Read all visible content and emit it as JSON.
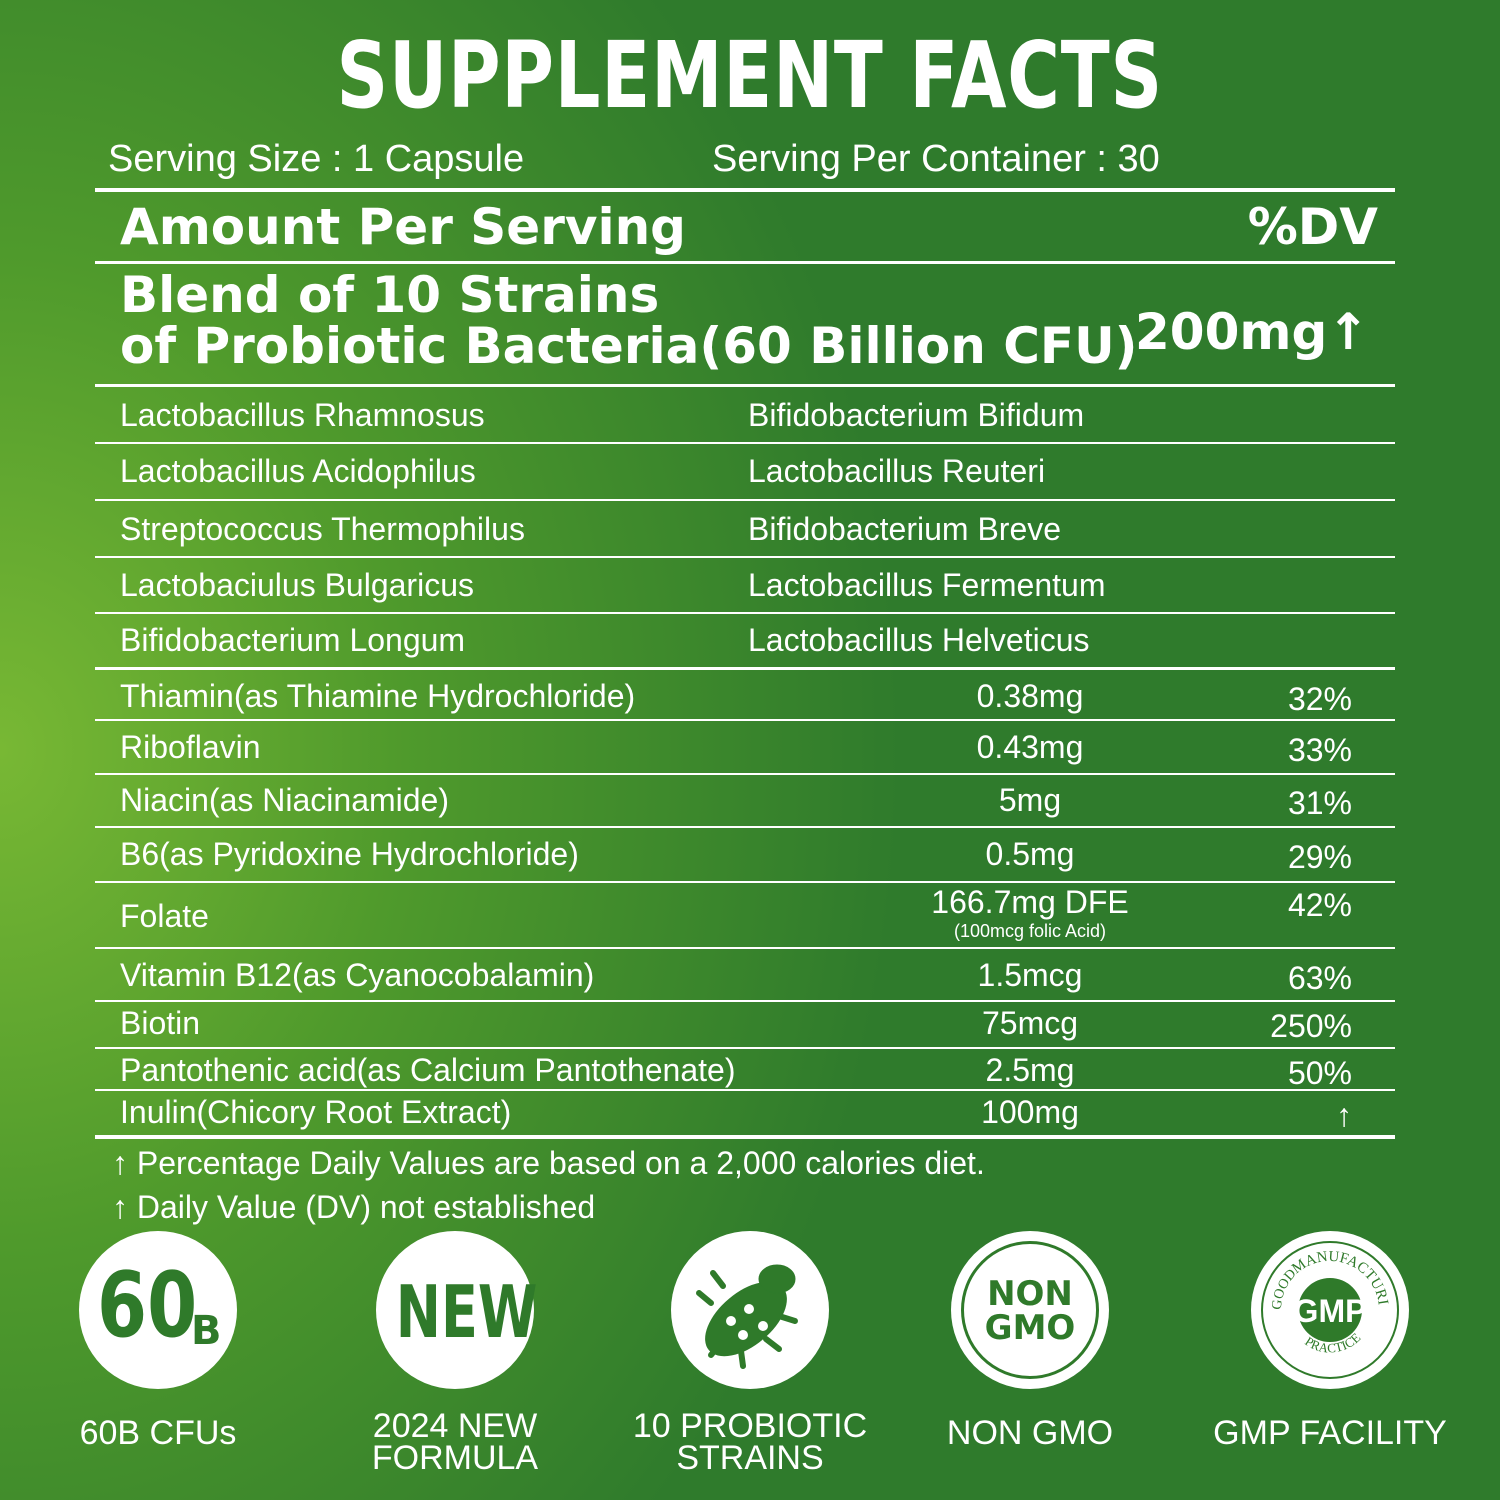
{
  "title": "SUPPLEMENT FACTS",
  "serving_size": "Serving Size : 1 Capsule",
  "servings_per_container": "Serving Per Container : 30",
  "header": {
    "amount": "Amount Per Serving",
    "dv": "%DV"
  },
  "blend": {
    "name_line1": "Blend of 10 Strains",
    "name_line2": "of Probiotic Bacteria(60 Billion CFU)",
    "amount": "200mg↑"
  },
  "strains": [
    [
      "Lactobacillus Rhamnosus",
      "Bifidobacterium Bifidum"
    ],
    [
      "Lactobacillus Acidophilus",
      "Lactobacillus Reuteri"
    ],
    [
      "Streptococcus Thermophilus",
      "Bifidobacterium Breve"
    ],
    [
      "Lactobaciulus Bulgaricus",
      "Lactobacillus Fermentum"
    ],
    [
      "Bifidobacterium Longum",
      "Lactobacillus Helveticus"
    ]
  ],
  "nutrients": [
    {
      "name": "Thiamin(as Thiamine Hydrochloride)",
      "amount": "0.38mg",
      "dv": "32%"
    },
    {
      "name": "Riboflavin",
      "amount": "0.43mg",
      "dv": "33%"
    },
    {
      "name": "Niacin(as Niacinamide)",
      "amount": "5mg",
      "dv": "31%"
    },
    {
      "name": "B6(as Pyridoxine Hydrochloride)",
      "amount": "0.5mg",
      "dv": "29%"
    },
    {
      "name": "Folate",
      "amount": "166.7mg DFE",
      "note": "(100mcg folic Acid)",
      "dv": "42%"
    },
    {
      "name": "Vitamin B12(as Cyanocobalamin)",
      "amount": "1.5mcg",
      "dv": "63%"
    },
    {
      "name": "Biotin",
      "amount": "75mcg",
      "dv": "250%"
    },
    {
      "name": "Pantothenic acid(as Calcium Pantothenate)",
      "amount": "2.5mg",
      "dv": "50%"
    },
    {
      "name": "Inulin(Chicory Root Extract)",
      "amount": "100mg",
      "dv": "↑"
    }
  ],
  "footnotes": [
    "↑ Percentage Daily Values are based on a 2,000 calories diet.",
    "↑ Daily Value (DV) not established"
  ],
  "badges": [
    {
      "icon": "60",
      "icon_sub": "B",
      "label": "60B CFUs"
    },
    {
      "icon": "NEW",
      "label": "2024 NEW FORMULA"
    },
    {
      "label": "10 PROBIOTIC STRAINS"
    },
    {
      "icon": "NON",
      "icon_sub": "GMO",
      "label": "NON GMO"
    },
    {
      "icon": "GMP",
      "ring_top": "MANUFACTURING",
      "ring_left": "GOOD",
      "ring_bottom": "PRACTICE",
      "label": "GMP FACILITY"
    }
  ]
}
